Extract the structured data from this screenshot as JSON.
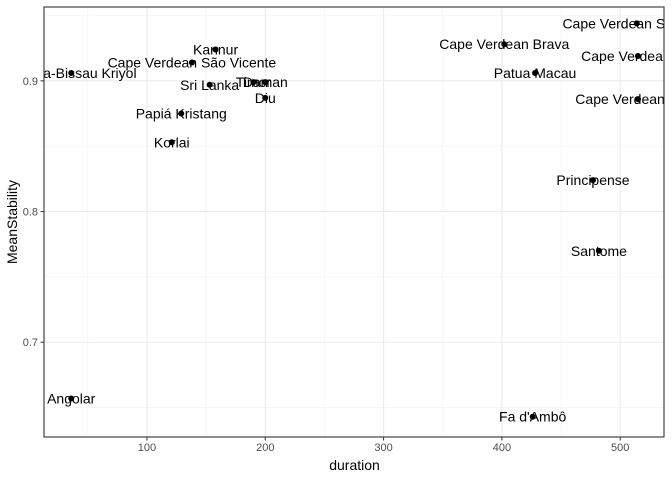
{
  "chart_data": {
    "type": "scatter",
    "title": "",
    "xlabel": "duration",
    "ylabel": "MeanStability",
    "xlim": [
      13,
      537
    ],
    "ylim": [
      0.6275,
      0.9565
    ],
    "x_ticks": [
      100,
      200,
      300,
      400,
      500
    ],
    "y_ticks": [
      0.7,
      0.8,
      0.9
    ],
    "x_tick_labels": [
      "100",
      "200",
      "300",
      "400",
      "500"
    ],
    "y_tick_labels": [
      "0.7",
      "0.8",
      "0.9"
    ],
    "grid": true,
    "theme": "bw",
    "point_color": "#000000",
    "points": [
      {
        "label": "Angolar",
        "x": 36,
        "y": 0.657
      },
      {
        "label": "Guinea-Bissau Kriyol",
        "x": 36,
        "y": 0.906
      },
      {
        "label": "Korlai",
        "x": 121,
        "y": 0.853
      },
      {
        "label": "Papiá Kristang",
        "x": 129,
        "y": 0.875
      },
      {
        "label": "Cape Verdean São Vicente",
        "x": 138,
        "y": 0.914
      },
      {
        "label": "Kannur",
        "x": 158,
        "y": 0.924
      },
      {
        "label": "Sri Lanka",
        "x": 153,
        "y": 0.897
      },
      {
        "label": "Timor",
        "x": 190,
        "y": 0.899
      },
      {
        "label": "Daman",
        "x": 200,
        "y": 0.899
      },
      {
        "label": "Diu",
        "x": 200,
        "y": 0.887
      },
      {
        "label": "Cape Verdean Brava",
        "x": 402,
        "y": 0.928
      },
      {
        "label": "Patua Macau",
        "x": 428,
        "y": 0.906
      },
      {
        "label": "Fa d'Ambô",
        "x": 426,
        "y": 0.643
      },
      {
        "label": "Principense",
        "x": 477,
        "y": 0.824
      },
      {
        "label": "Santome",
        "x": 482,
        "y": 0.77
      },
      {
        "label": "Cape Verdean Santiago",
        "x": 514,
        "y": 0.944
      },
      {
        "label": "Cape Verdean Sal",
        "x": 515,
        "y": 0.919
      },
      {
        "label": "Cape Verdean Fogo",
        "x": 515,
        "y": 0.886
      }
    ]
  }
}
